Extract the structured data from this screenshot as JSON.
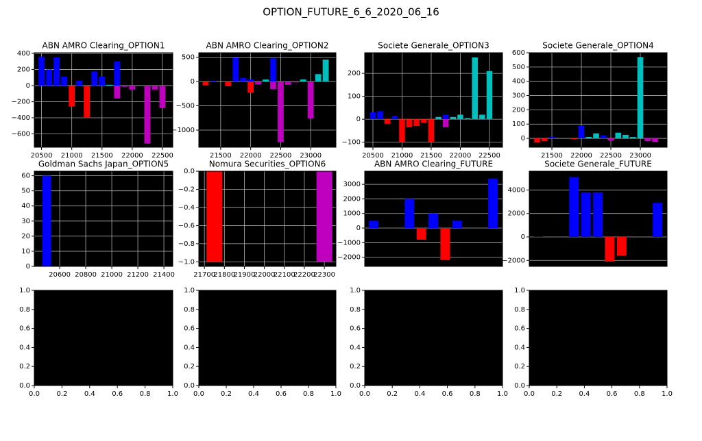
{
  "title": "OPTION_FUTURE_6_6_2020_06_16",
  "chart_data": [
    {
      "type": "bar",
      "title": "ABN AMRO Clearing_OPTION1",
      "grid": true,
      "x": [
        20500,
        20625,
        20750,
        20875,
        21000,
        21125,
        21250,
        21375,
        21500,
        21625,
        21750,
        21750,
        21875,
        22000,
        22250,
        22375,
        22500
      ],
      "values": [
        360,
        200,
        350,
        110,
        -260,
        60,
        -400,
        175,
        110,
        10,
        300,
        -160,
        -15,
        -50,
        -720,
        -50,
        -280
      ],
      "colors": [
        "#0000ff",
        "#0000ff",
        "#0000ff",
        "#0000ff",
        "#ff0000",
        "#0000ff",
        "#ff0000",
        "#0000ff",
        "#0000ff",
        "#00bfbf",
        "#0000ff",
        "#bf00bf",
        "#bf00bf",
        "#bf00bf",
        "#bf00bf",
        "#bf00bf",
        "#bf00bf"
      ],
      "xlim": [
        20380,
        22670
      ],
      "xticks": [
        20500,
        21000,
        21500,
        22000,
        22500
      ],
      "ylim": [
        -766,
        408
      ],
      "yticks": [
        {
          "value": -600,
          "label": "−600"
        },
        {
          "value": -400,
          "label": "−400"
        },
        {
          "value": -200,
          "label": "−200"
        },
        0,
        200,
        400
      ]
    },
    {
      "type": "bar",
      "title": "ABN AMRO Clearing_OPTION2",
      "grid": true,
      "x": [
        21250,
        21375,
        21625,
        21750,
        21875,
        22000,
        22000,
        22125,
        22250,
        22375,
        22375,
        22500,
        22625,
        22750,
        22875,
        23000,
        23125,
        23250
      ],
      "values": [
        -80,
        10,
        -100,
        490,
        70,
        -230,
        40,
        -60,
        40,
        480,
        -160,
        -1250,
        -70,
        -20,
        40,
        -760,
        150,
        450
      ],
      "colors": [
        "#ff0000",
        "#0000ff",
        "#ff0000",
        "#0000ff",
        "#0000ff",
        "#ff0000",
        "#0000ff",
        "#bf00bf",
        "#00bfbf",
        "#0000ff",
        "#bf00bf",
        "#bf00bf",
        "#bf00bf",
        "#bf00bf",
        "#00bfbf",
        "#bf00bf",
        "#00bfbf",
        "#00bfbf"
      ],
      "xlim": [
        21136,
        23420
      ],
      "xticks": [
        21500,
        22000,
        22500,
        23000
      ],
      "ylim": [
        -1352,
        590
      ],
      "yticks": [
        {
          "value": -1000,
          "label": "−1000"
        },
        {
          "value": -500,
          "label": "−500"
        },
        0,
        500
      ]
    },
    {
      "type": "bar",
      "title": "Societe Generale_OPTION3",
      "grid": true,
      "x": [
        20500,
        20625,
        20750,
        20875,
        21000,
        21125,
        21250,
        21375,
        21500,
        21625,
        21750,
        21750,
        21875,
        22000,
        22125,
        22250,
        22375,
        22500
      ],
      "values": [
        30,
        35,
        -20,
        15,
        -100,
        -35,
        -30,
        -15,
        -100,
        10,
        20,
        -35,
        10,
        20,
        5,
        270,
        20,
        210
      ],
      "colors": [
        "#0000ff",
        "#0000ff",
        "#ff0000",
        "#0000ff",
        "#ff0000",
        "#ff0000",
        "#ff0000",
        "#ff0000",
        "#ff0000",
        "#00bfbf",
        "#0000ff",
        "#bf00bf",
        "#00bfbf",
        "#00bfbf",
        "#00bfbf",
        "#00bfbf",
        "#00bfbf",
        "#00bfbf"
      ],
      "xlim": [
        20359,
        22724
      ],
      "xticks": [
        20500,
        21000,
        21500,
        22000,
        22500
      ],
      "ylim": [
        -122,
        290
      ],
      "yticks": [
        {
          "value": -100,
          "label": "−100"
        },
        0,
        100,
        200
      ]
    },
    {
      "type": "bar",
      "title": "Societe Generale_OPTION4",
      "grid": true,
      "x": [
        21250,
        21375,
        21500,
        21875,
        22000,
        22125,
        22250,
        22250,
        22375,
        22500,
        22625,
        22750,
        22875,
        23000,
        23125,
        23250
      ],
      "values": [
        -30,
        -20,
        10,
        -5,
        90,
        10,
        5,
        35,
        20,
        -15,
        40,
        25,
        10,
        570,
        -20,
        -25
      ],
      "colors": [
        "#ff0000",
        "#ff0000",
        "#0000ff",
        "#ff0000",
        "#0000ff",
        "#00bfbf",
        "#0000ff",
        "#00bfbf",
        "#0000ff",
        "#bf00bf",
        "#00bfbf",
        "#00bfbf",
        "#00bfbf",
        "#00bfbf",
        "#bf00bf",
        "#bf00bf"
      ],
      "xlim": [
        21116,
        23453
      ],
      "xticks": [
        21500,
        22000,
        22500,
        23000
      ],
      "ylim": [
        -62,
        600
      ],
      "yticks": [
        0,
        100,
        200,
        300,
        400,
        500,
        600
      ]
    },
    {
      "type": "bar",
      "title": "Goldman Sachs Japan_OPTION5",
      "grid": true,
      "x": [
        20500
      ],
      "values": [
        60
      ],
      "colors": [
        "#0000ff"
      ],
      "xlim": [
        20405,
        21468
      ],
      "xticks": [
        20600,
        20800,
        21000,
        21200,
        21400
      ],
      "ylim": [
        0,
        63
      ],
      "yticks": [
        0,
        10,
        20,
        30,
        40,
        50,
        60
      ]
    },
    {
      "type": "bar",
      "title": "Nomura Securities_OPTION6",
      "grid": true,
      "x": [
        21750,
        22300
      ],
      "values": [
        -1.0,
        -1.0
      ],
      "colors": [
        "#ff0000",
        "#bf00bf"
      ],
      "xlim": [
        21672,
        22358
      ],
      "xticks": [
        21700,
        21800,
        21900,
        22000,
        22100,
        22200,
        22300
      ],
      "ylim": [
        -1.05,
        0.0
      ],
      "yticks": [
        {
          "value": -1.0,
          "label": "−1.0"
        },
        {
          "value": -0.8,
          "label": "−0.8"
        },
        {
          "value": -0.6,
          "label": "−0.6"
        },
        {
          "value": -0.4,
          "label": "−0.4"
        },
        {
          "value": -0.2,
          "label": "−0.2"
        },
        {
          "value": 0.0,
          "label": "0.0"
        }
      ]
    },
    {
      "type": "bar",
      "title": "ABN AMRO Clearing_FUTURE",
      "grid": true,
      "x": [
        0,
        3,
        4,
        5,
        6,
        7,
        10
      ],
      "values": [
        500,
        2000,
        -800,
        1000,
        -2200,
        500,
        3400
      ],
      "colors": [
        "#0000ff",
        "#0000ff",
        "#ff0000",
        "#0000ff",
        "#ff0000",
        "#0000ff",
        "#0000ff"
      ],
      "xlim": [
        -0.75,
        10.8
      ],
      "ylim": [
        -2630,
        3900
      ],
      "yticks": [
        {
          "value": -2000,
          "label": "−2000"
        },
        {
          "value": -1000,
          "label": "−1000"
        },
        0,
        1000,
        2000,
        3000
      ]
    },
    {
      "type": "bar",
      "title": "Societe Generale_FUTURE",
      "grid": true,
      "x": [
        0,
        3,
        4,
        5,
        6,
        7,
        10
      ],
      "values": [
        50,
        5100,
        3800,
        3800,
        -2100,
        -1600,
        2900
      ],
      "colors": [
        "#0000ff",
        "#0000ff",
        "#0000ff",
        "#0000ff",
        "#ff0000",
        "#ff0000",
        "#0000ff"
      ],
      "xlim": [
        -0.75,
        10.8
      ],
      "ylim": [
        -2510,
        5600
      ],
      "yticks": [
        {
          "value": -2000,
          "label": "−2000"
        },
        0,
        2000,
        4000
      ]
    },
    {
      "type": "empty",
      "grid": false,
      "xlim": [
        0,
        1
      ],
      "ylim": [
        0,
        1
      ],
      "xticks": [
        {
          "value": 0,
          "label": "0.0"
        },
        {
          "value": 0.2,
          "label": "0.2"
        },
        {
          "value": 0.4,
          "label": "0.4"
        },
        {
          "value": 0.6,
          "label": "0.6"
        },
        {
          "value": 0.8,
          "label": "0.8"
        },
        {
          "value": 1,
          "label": "1.0"
        }
      ],
      "yticks": [
        {
          "value": 0,
          "label": "0.0"
        },
        {
          "value": 0.2,
          "label": "0.2"
        },
        {
          "value": 0.4,
          "label": "0.4"
        },
        {
          "value": 0.6,
          "label": "0.6"
        },
        {
          "value": 0.8,
          "label": "0.8"
        },
        {
          "value": 1,
          "label": "1.0"
        }
      ]
    },
    {
      "type": "empty",
      "grid": false,
      "xlim": [
        0,
        1
      ],
      "ylim": [
        0,
        1
      ],
      "xticks": [
        {
          "value": 0,
          "label": "0.0"
        },
        {
          "value": 0.2,
          "label": "0.2"
        },
        {
          "value": 0.4,
          "label": "0.4"
        },
        {
          "value": 0.6,
          "label": "0.6"
        },
        {
          "value": 0.8,
          "label": "0.8"
        },
        {
          "value": 1,
          "label": "1.0"
        }
      ],
      "yticks": [
        {
          "value": 0,
          "label": "0.0"
        },
        {
          "value": 0.2,
          "label": "0.2"
        },
        {
          "value": 0.4,
          "label": "0.4"
        },
        {
          "value": 0.6,
          "label": "0.6"
        },
        {
          "value": 0.8,
          "label": "0.8"
        },
        {
          "value": 1,
          "label": "1.0"
        }
      ]
    },
    {
      "type": "empty",
      "grid": false,
      "xlim": [
        0,
        1
      ],
      "ylim": [
        0,
        1
      ],
      "xticks": [
        {
          "value": 0,
          "label": "0.0"
        },
        {
          "value": 0.2,
          "label": "0.2"
        },
        {
          "value": 0.4,
          "label": "0.4"
        },
        {
          "value": 0.6,
          "label": "0.6"
        },
        {
          "value": 0.8,
          "label": "0.8"
        },
        {
          "value": 1,
          "label": "1.0"
        }
      ],
      "yticks": [
        {
          "value": 0,
          "label": "0.0"
        },
        {
          "value": 0.2,
          "label": "0.2"
        },
        {
          "value": 0.4,
          "label": "0.4"
        },
        {
          "value": 0.6,
          "label": "0.6"
        },
        {
          "value": 0.8,
          "label": "0.8"
        },
        {
          "value": 1,
          "label": "1.0"
        }
      ]
    },
    {
      "type": "empty",
      "grid": false,
      "xlim": [
        0,
        1
      ],
      "ylim": [
        0,
        1
      ],
      "xticks": [
        {
          "value": 0,
          "label": "0.0"
        },
        {
          "value": 0.2,
          "label": "0.2"
        },
        {
          "value": 0.4,
          "label": "0.4"
        },
        {
          "value": 0.6,
          "label": "0.6"
        },
        {
          "value": 0.8,
          "label": "0.8"
        },
        {
          "value": 1,
          "label": "1.0"
        }
      ],
      "yticks": [
        {
          "value": 0,
          "label": "0.0"
        },
        {
          "value": 0.2,
          "label": "0.2"
        },
        {
          "value": 0.4,
          "label": "0.4"
        },
        {
          "value": 0.6,
          "label": "0.6"
        },
        {
          "value": 0.8,
          "label": "0.8"
        },
        {
          "value": 1,
          "label": "1.0"
        }
      ]
    }
  ]
}
